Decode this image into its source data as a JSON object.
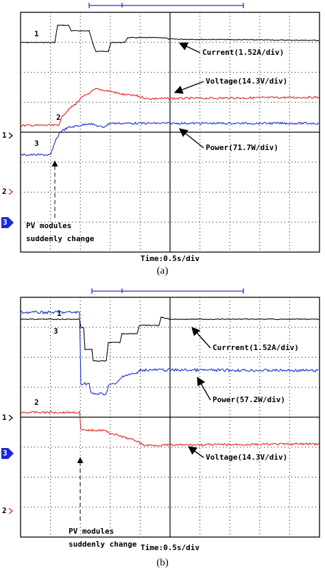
{
  "panels": [
    {
      "caption": "(a)",
      "time_label": "Time:0.5s/div",
      "trace_labels": [
        "1",
        "2",
        "3"
      ],
      "channel_markers": [
        "1",
        "2",
        "3"
      ],
      "annotations": [
        "Current(1.52A/div)",
        "Voltage(14.3V/div)",
        "Power(71.7W/div)"
      ],
      "note": [
        "PV modules",
        "suddenly change"
      ]
    },
    {
      "caption": "(b)",
      "time_label": "Time:0.5s/div",
      "trace_labels": [
        "1",
        "3",
        "2"
      ],
      "channel_markers": [
        "1",
        "3",
        "2"
      ],
      "annotations": [
        "Currrent(1.52A/div)",
        "Power(57.2W/div)",
        "Voltage(14.3V/div)"
      ],
      "note": [
        "PV modules",
        "suddenly change"
      ]
    }
  ]
}
